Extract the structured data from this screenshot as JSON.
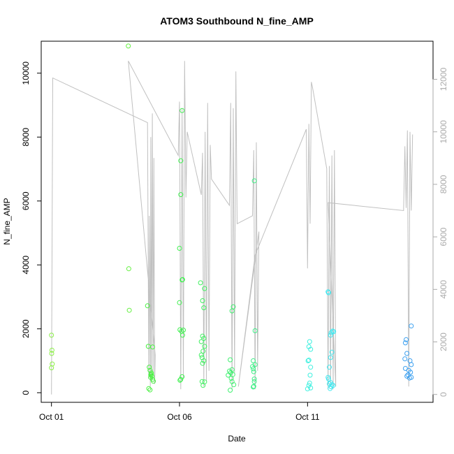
{
  "chart_data": {
    "type": "scatter",
    "title": "ATOM3 Southbound N_fine_AMP",
    "xlabel": "Date",
    "ylabel": "N_fine_AMP",
    "x_unit": "day (October)",
    "xlim": [
      0.6,
      15.9
    ],
    "ylim": [
      -300,
      11000
    ],
    "y2lim": [
      -300,
      13450
    ],
    "x_ticks": [
      {
        "value": 1,
        "label": "Oct 01"
      },
      {
        "value": 6,
        "label": "Oct 06"
      },
      {
        "value": 11,
        "label": "Oct 11"
      }
    ],
    "y_ticks": [
      {
        "value": 0,
        "label": "0"
      },
      {
        "value": 2000,
        "label": "2000"
      },
      {
        "value": 4000,
        "label": "4000"
      },
      {
        "value": 6000,
        "label": "6000"
      },
      {
        "value": 8000,
        "label": "8000"
      },
      {
        "value": 10000,
        "label": "10000"
      }
    ],
    "y2_ticks": [
      {
        "value": 0,
        "label": "0"
      },
      {
        "value": 2000,
        "label": "2000"
      },
      {
        "value": 4000,
        "label": "4000"
      },
      {
        "value": 6000,
        "label": "6000"
      },
      {
        "value": 8000,
        "label": "8000"
      },
      {
        "value": 10000,
        "label": "10000"
      },
      {
        "value": 12000,
        "label": "12000"
      }
    ],
    "grid": false,
    "colors": {
      "line": "#c0c0c0",
      "axis": "#000000",
      "axis_right": "#aaaaaa"
    },
    "points": [
      {
        "x": 1.0,
        "y": 1800,
        "c": "#8cf048"
      },
      {
        "x": 1.02,
        "y": 1330,
        "c": "#8cf048"
      },
      {
        "x": 1.01,
        "y": 1230,
        "c": "#8cf048"
      },
      {
        "x": 1.03,
        "y": 900,
        "c": "#8cf048"
      },
      {
        "x": 1.0,
        "y": 780,
        "c": "#8cf048"
      },
      {
        "x": 4.0,
        "y": 10850,
        "c": "#64f040"
      },
      {
        "x": 4.02,
        "y": 3880,
        "c": "#64f040"
      },
      {
        "x": 4.04,
        "y": 2580,
        "c": "#64f040"
      },
      {
        "x": 4.75,
        "y": 2720,
        "c": "#48f040"
      },
      {
        "x": 4.78,
        "y": 1450,
        "c": "#48f040"
      },
      {
        "x": 4.95,
        "y": 1430,
        "c": "#48f040"
      },
      {
        "x": 4.82,
        "y": 800,
        "c": "#48f040"
      },
      {
        "x": 4.85,
        "y": 700,
        "c": "#48f040"
      },
      {
        "x": 4.9,
        "y": 620,
        "c": "#48f040"
      },
      {
        "x": 4.88,
        "y": 560,
        "c": "#48f040"
      },
      {
        "x": 4.92,
        "y": 520,
        "c": "#48f040"
      },
      {
        "x": 4.87,
        "y": 480,
        "c": "#48f040"
      },
      {
        "x": 4.95,
        "y": 420,
        "c": "#48f040"
      },
      {
        "x": 4.98,
        "y": 360,
        "c": "#48f040"
      },
      {
        "x": 4.8,
        "y": 130,
        "c": "#48f040"
      },
      {
        "x": 4.85,
        "y": 90,
        "c": "#48f040"
      },
      {
        "x": 4.9,
        "y": 580,
        "c": "#48f040"
      },
      {
        "x": 6.1,
        "y": 8830,
        "c": "#40f050"
      },
      {
        "x": 6.05,
        "y": 7260,
        "c": "#40f050"
      },
      {
        "x": 6.05,
        "y": 6200,
        "c": "#40f050"
      },
      {
        "x": 6.0,
        "y": 4520,
        "c": "#40f050"
      },
      {
        "x": 6.1,
        "y": 3530,
        "c": "#40f050"
      },
      {
        "x": 6.12,
        "y": 3540,
        "c": "#40f050"
      },
      {
        "x": 6.0,
        "y": 2820,
        "c": "#40f050"
      },
      {
        "x": 6.02,
        "y": 1970,
        "c": "#40f050"
      },
      {
        "x": 6.08,
        "y": 1920,
        "c": "#40f050"
      },
      {
        "x": 6.15,
        "y": 1960,
        "c": "#40f050"
      },
      {
        "x": 6.12,
        "y": 1800,
        "c": "#40f050"
      },
      {
        "x": 6.1,
        "y": 500,
        "c": "#40f050"
      },
      {
        "x": 6.05,
        "y": 420,
        "c": "#40f050"
      },
      {
        "x": 6.02,
        "y": 390,
        "c": "#40f050"
      },
      {
        "x": 6.82,
        "y": 3440,
        "c": "#40f060"
      },
      {
        "x": 6.98,
        "y": 3260,
        "c": "#40f060"
      },
      {
        "x": 6.9,
        "y": 2880,
        "c": "#40f060"
      },
      {
        "x": 6.95,
        "y": 2660,
        "c": "#40f060"
      },
      {
        "x": 6.9,
        "y": 1770,
        "c": "#40f060"
      },
      {
        "x": 6.95,
        "y": 1700,
        "c": "#40f060"
      },
      {
        "x": 6.85,
        "y": 1600,
        "c": "#40f060"
      },
      {
        "x": 6.98,
        "y": 1450,
        "c": "#40f060"
      },
      {
        "x": 6.92,
        "y": 1300,
        "c": "#40f060"
      },
      {
        "x": 6.85,
        "y": 1180,
        "c": "#40f060"
      },
      {
        "x": 6.88,
        "y": 1100,
        "c": "#40f060"
      },
      {
        "x": 6.95,
        "y": 1000,
        "c": "#40f060"
      },
      {
        "x": 6.9,
        "y": 920,
        "c": "#40f060"
      },
      {
        "x": 6.88,
        "y": 350,
        "c": "#40f060"
      },
      {
        "x": 6.98,
        "y": 340,
        "c": "#40f060"
      },
      {
        "x": 6.92,
        "y": 230,
        "c": "#40f060"
      },
      {
        "x": 8.1,
        "y": 2690,
        "c": "#40f070"
      },
      {
        "x": 8.05,
        "y": 2560,
        "c": "#40f070"
      },
      {
        "x": 7.98,
        "y": 1030,
        "c": "#40f070"
      },
      {
        "x": 7.95,
        "y": 680,
        "c": "#40f070"
      },
      {
        "x": 8.05,
        "y": 720,
        "c": "#40f070"
      },
      {
        "x": 8.0,
        "y": 630,
        "c": "#40f070"
      },
      {
        "x": 7.9,
        "y": 550,
        "c": "#40f070"
      },
      {
        "x": 8.08,
        "y": 570,
        "c": "#40f070"
      },
      {
        "x": 8.02,
        "y": 450,
        "c": "#40f070"
      },
      {
        "x": 8.05,
        "y": 350,
        "c": "#40f070"
      },
      {
        "x": 8.12,
        "y": 250,
        "c": "#40f070"
      },
      {
        "x": 7.98,
        "y": 80,
        "c": "#40f070"
      },
      {
        "x": 8.92,
        "y": 6630,
        "c": "#40f088"
      },
      {
        "x": 8.95,
        "y": 1940,
        "c": "#40f088"
      },
      {
        "x": 8.88,
        "y": 1000,
        "c": "#40f088"
      },
      {
        "x": 8.95,
        "y": 880,
        "c": "#40f088"
      },
      {
        "x": 8.85,
        "y": 820,
        "c": "#40f088"
      },
      {
        "x": 8.88,
        "y": 750,
        "c": "#40f088"
      },
      {
        "x": 8.9,
        "y": 660,
        "c": "#40f088"
      },
      {
        "x": 8.92,
        "y": 430,
        "c": "#40f088"
      },
      {
        "x": 8.92,
        "y": 350,
        "c": "#40f088"
      },
      {
        "x": 8.88,
        "y": 180,
        "c": "#40f088"
      },
      {
        "x": 8.9,
        "y": 200,
        "c": "#40f088"
      },
      {
        "x": 11.08,
        "y": 1600,
        "c": "#40f0e0"
      },
      {
        "x": 11.05,
        "y": 1440,
        "c": "#40f0e0"
      },
      {
        "x": 11.12,
        "y": 1360,
        "c": "#40f0e0"
      },
      {
        "x": 11.05,
        "y": 1020,
        "c": "#40f0e0"
      },
      {
        "x": 11.02,
        "y": 1000,
        "c": "#40f0e0"
      },
      {
        "x": 11.12,
        "y": 800,
        "c": "#40f0e0"
      },
      {
        "x": 11.1,
        "y": 550,
        "c": "#40f0e0"
      },
      {
        "x": 11.08,
        "y": 300,
        "c": "#40f0e0"
      },
      {
        "x": 11.05,
        "y": 230,
        "c": "#40f0e0"
      },
      {
        "x": 11.12,
        "y": 150,
        "c": "#40f0e0"
      },
      {
        "x": 11.0,
        "y": 120,
        "c": "#40f0e0"
      },
      {
        "x": 11.8,
        "y": 3160,
        "c": "#40e8f0"
      },
      {
        "x": 11.82,
        "y": 3130,
        "c": "#40e8f0"
      },
      {
        "x": 11.98,
        "y": 1930,
        "c": "#40e8f0"
      },
      {
        "x": 11.92,
        "y": 1880,
        "c": "#40e8f0"
      },
      {
        "x": 12.02,
        "y": 1910,
        "c": "#40e8f0"
      },
      {
        "x": 11.9,
        "y": 1800,
        "c": "#40e8f0"
      },
      {
        "x": 11.95,
        "y": 1270,
        "c": "#40e8f0"
      },
      {
        "x": 11.9,
        "y": 1100,
        "c": "#40e8f0"
      },
      {
        "x": 11.85,
        "y": 800,
        "c": "#40e8f0"
      },
      {
        "x": 11.8,
        "y": 480,
        "c": "#40e8f0"
      },
      {
        "x": 11.82,
        "y": 430,
        "c": "#40e8f0"
      },
      {
        "x": 11.9,
        "y": 320,
        "c": "#40e8f0"
      },
      {
        "x": 11.85,
        "y": 280,
        "c": "#40e8f0"
      },
      {
        "x": 11.95,
        "y": 250,
        "c": "#40e8f0"
      },
      {
        "x": 11.92,
        "y": 190,
        "c": "#40e8f0"
      },
      {
        "x": 11.88,
        "y": 130,
        "c": "#40e8f0"
      },
      {
        "x": 12.0,
        "y": 230,
        "c": "#40e8f0"
      },
      {
        "x": 15.05,
        "y": 2090,
        "c": "#3ca0f0"
      },
      {
        "x": 14.85,
        "y": 1660,
        "c": "#3ca0f0"
      },
      {
        "x": 14.82,
        "y": 1560,
        "c": "#3ca0f0"
      },
      {
        "x": 14.88,
        "y": 1230,
        "c": "#3ca0f0"
      },
      {
        "x": 14.8,
        "y": 1060,
        "c": "#3ca0f0"
      },
      {
        "x": 15.0,
        "y": 1000,
        "c": "#3ca0f0"
      },
      {
        "x": 15.05,
        "y": 880,
        "c": "#3ca0f0"
      },
      {
        "x": 14.82,
        "y": 760,
        "c": "#3ca0f0"
      },
      {
        "x": 14.95,
        "y": 700,
        "c": "#3ca0f0"
      },
      {
        "x": 15.02,
        "y": 640,
        "c": "#3ca0f0"
      },
      {
        "x": 14.92,
        "y": 560,
        "c": "#3ca0f0"
      },
      {
        "x": 14.88,
        "y": 520,
        "c": "#3ca0f0"
      },
      {
        "x": 15.05,
        "y": 480,
        "c": "#3ca0f0"
      },
      {
        "x": 14.98,
        "y": 460,
        "c": "#3ca0f0"
      }
    ],
    "line_y2": [
      [
        1.0,
        0
      ],
      [
        1.05,
        12050
      ],
      [
        4.75,
        10350
      ],
      [
        4.8,
        600
      ],
      [
        4.82,
        6800
      ],
      [
        4.86,
        300
      ],
      [
        4.88,
        9800
      ],
      [
        4.91,
        500
      ],
      [
        4.94,
        10700
      ],
      [
        4.97,
        800
      ],
      [
        5.0,
        9000
      ],
      [
        5.03,
        400
      ],
      [
        5.05,
        1500
      ],
      [
        4.0,
        12700
      ],
      [
        5.95,
        9100
      ],
      [
        6.0,
        11150
      ],
      [
        6.05,
        200
      ],
      [
        6.1,
        10900
      ],
      [
        6.15,
        600
      ],
      [
        6.2,
        12700
      ],
      [
        6.25,
        7500
      ],
      [
        6.3,
        10000
      ],
      [
        6.85,
        7600
      ],
      [
        6.9,
        9200
      ],
      [
        6.95,
        300
      ],
      [
        7.0,
        10000
      ],
      [
        7.05,
        500
      ],
      [
        7.1,
        11100
      ],
      [
        7.15,
        900
      ],
      [
        7.2,
        9500
      ],
      [
        7.25,
        8200
      ],
      [
        7.95,
        7200
      ],
      [
        8.0,
        11100
      ],
      [
        8.05,
        200
      ],
      [
        8.1,
        10900
      ],
      [
        8.15,
        800
      ],
      [
        8.2,
        12300
      ],
      [
        8.25,
        6500
      ],
      [
        8.85,
        6800
      ],
      [
        8.9,
        9300
      ],
      [
        8.95,
        200
      ],
      [
        9.0,
        9600
      ],
      [
        9.05,
        900
      ],
      [
        9.1,
        6200
      ],
      [
        8.3,
        300
      ],
      [
        8.95,
        5300
      ],
      [
        10.95,
        10100
      ],
      [
        11.0,
        4800
      ],
      [
        11.05,
        10300
      ],
      [
        11.1,
        6500
      ],
      [
        11.15,
        11900
      ],
      [
        11.2,
        11650
      ],
      [
        11.75,
        8600
      ],
      [
        11.8,
        200
      ],
      [
        11.85,
        8700
      ],
      [
        11.9,
        400
      ],
      [
        11.95,
        9100
      ],
      [
        12.0,
        200
      ],
      [
        12.05,
        9300
      ],
      [
        12.1,
        300
      ],
      [
        11.8,
        7300
      ],
      [
        14.75,
        7000
      ],
      [
        14.8,
        9450
      ],
      [
        14.85,
        7100
      ],
      [
        14.9,
        10050
      ],
      [
        14.95,
        300
      ],
      [
        15.0,
        10000
      ],
      [
        15.05,
        7000
      ],
      [
        15.1,
        9900
      ]
    ]
  }
}
